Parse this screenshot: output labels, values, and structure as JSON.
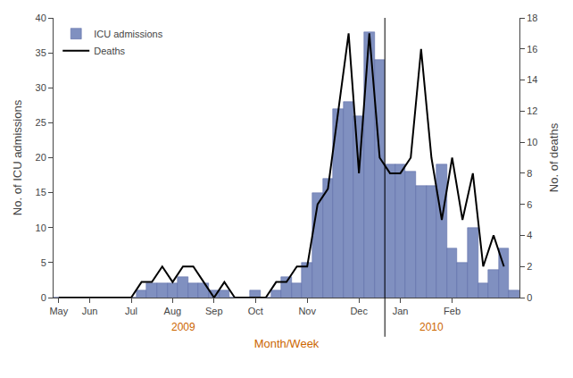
{
  "chart_data": {
    "type": "bar",
    "xlabel": "Month/Week",
    "ylabel": "No. of ICU admissions",
    "y2label": "No. of deaths",
    "categories": [
      "May",
      null,
      null,
      "Jun",
      null,
      null,
      null,
      "Jul",
      null,
      null,
      null,
      "Aug",
      null,
      null,
      null,
      "Sep",
      null,
      null,
      null,
      "Oct",
      null,
      null,
      null,
      null,
      "Nov",
      null,
      null,
      null,
      null,
      "Dec",
      null,
      null,
      null,
      "Jan",
      null,
      null,
      null,
      null,
      "Feb",
      null,
      null,
      null,
      null,
      null,
      null
    ],
    "series": [
      {
        "name": "ICU admissions",
        "type": "bar",
        "color": "#8090C0",
        "values": [
          0,
          0,
          0,
          0,
          0,
          0,
          0,
          0,
          1,
          2,
          2,
          2,
          3,
          2,
          2,
          1,
          1,
          0,
          0,
          1,
          0,
          1,
          3,
          2,
          5,
          15,
          17,
          27,
          28,
          26,
          38,
          34,
          19,
          19,
          18,
          16,
          16,
          19,
          7,
          5,
          10,
          2,
          4,
          7,
          1
        ]
      },
      {
        "name": "Deaths",
        "type": "line",
        "color": "#000000",
        "axis": "y2",
        "values": [
          0,
          0,
          0,
          0,
          0,
          0,
          0,
          0,
          1,
          1,
          2,
          1,
          2,
          2,
          1,
          0,
          1,
          0,
          0,
          0,
          0,
          1,
          1,
          2,
          2,
          6,
          7,
          12,
          17,
          8,
          17,
          9,
          8,
          8,
          9,
          16,
          9,
          5,
          9,
          5,
          8,
          2,
          4,
          2,
          null
        ]
      }
    ],
    "ylim": [
      0,
      40
    ],
    "yticks": [
      0,
      5,
      10,
      15,
      20,
      25,
      30,
      35,
      40
    ],
    "y2lim": [
      0,
      18
    ],
    "y2ticks": [
      0,
      2,
      4,
      6,
      8,
      10,
      12,
      14,
      16,
      18
    ],
    "annotations": [
      "2009",
      "2010"
    ],
    "legend": "upper left",
    "grid": false
  }
}
